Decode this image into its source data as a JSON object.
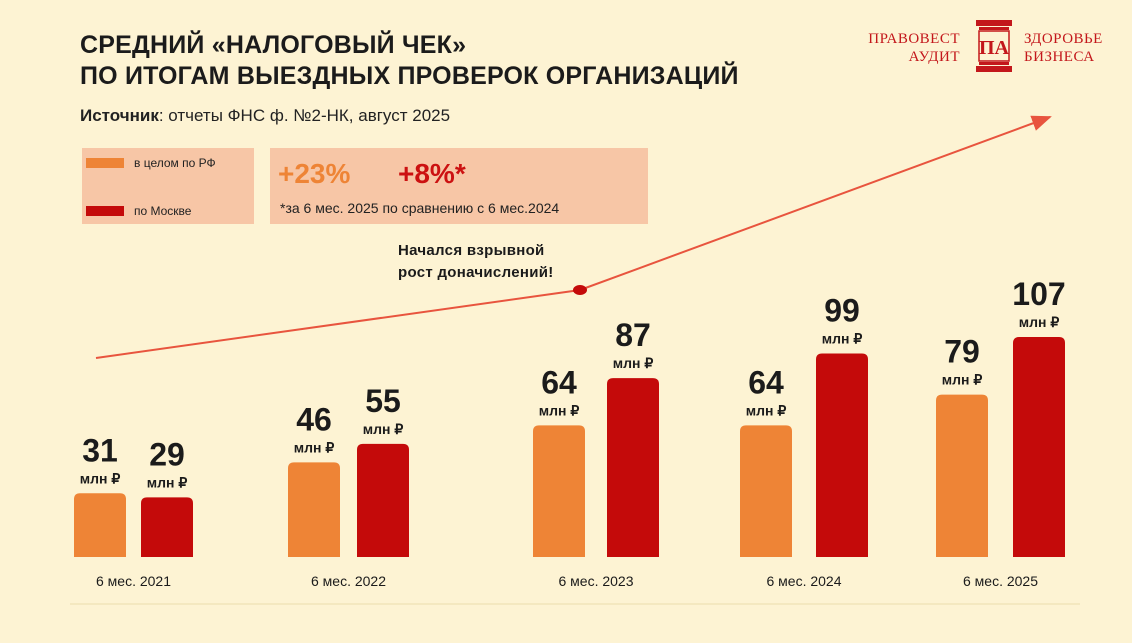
{
  "title": {
    "line1": "СРЕДНИЙ «НАЛОГОВЫЙ ЧЕК»",
    "line2": "ПО ИТОГАМ ВЫЕЗДНЫХ ПРОВЕРОК ОРГАНИЗАЦИЙ"
  },
  "source": {
    "label": "Источник",
    "text": ": отчеты ФНС ф. №2-НК, август 2025"
  },
  "logo": {
    "left_line1": "ПРАВОВЕСТ",
    "left_line2": "АУДИТ",
    "mark": "ПА",
    "right_line1": "ЗДОРОВЬЕ",
    "right_line2": "БИЗНЕСА"
  },
  "stats": {
    "rf_growth": "+23%",
    "moscow_growth": "+8%*",
    "footnote": "*за 6 мес. 2025 по сравнению с 6 мес.2024"
  },
  "annotation": {
    "line1": "Начался взрывной",
    "line2": "рост доначислений!"
  },
  "colors": {
    "rf": "#ee8436",
    "moscow": "#c40a0a",
    "background": "#fdf3d3",
    "panel": "#f7c6a6",
    "trend": "#e8543e",
    "stat_rf": "#ee8436",
    "stat_moscow": "#cc1111"
  },
  "chart_data": {
    "type": "bar",
    "title": "СРЕДНИЙ «НАЛОГОВЫЙ ЧЕК» ПО ИТОГАМ ВЫЕЗДНЫХ ПРОВЕРОК ОРГАНИЗАЦИЙ",
    "categories": [
      "6 мес. 2021",
      "6 мес. 2022",
      "6 мес. 2023",
      "6 мес. 2024",
      "6 мес. 2025"
    ],
    "unit": "млн ₽",
    "series": [
      {
        "name": "в целом по РФ",
        "values": [
          31,
          46,
          64,
          64,
          79
        ]
      },
      {
        "name": "по Москве",
        "values": [
          29,
          55,
          87,
          99,
          107
        ]
      }
    ],
    "legend": [
      "в целом по РФ",
      "по Москве"
    ],
    "legend_position": "top-left",
    "grid": false,
    "ylim": [
      0,
      125
    ],
    "trend_arrow": true
  }
}
